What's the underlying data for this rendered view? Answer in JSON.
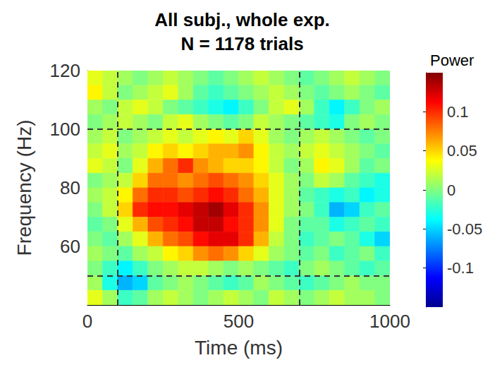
{
  "chart_data": {
    "type": "heatmap",
    "title": "All subj., whole exp.\nN = 1178 trials",
    "x_label": "Time (ms)",
    "y_label": "Frequency (Hz)",
    "xlim": [
      0,
      1000
    ],
    "xticks": [
      0,
      500,
      1000
    ],
    "ylim": [
      40,
      120
    ],
    "yticks": [
      60,
      80,
      100,
      120
    ],
    "grid": false,
    "reference_lines": {
      "x": [
        100,
        700
      ],
      "y": [
        50,
        100
      ],
      "line_style": "dashed",
      "color": "#333333"
    },
    "colorbar": {
      "label": "Power",
      "lim": [
        -0.15,
        0.15
      ],
      "ticks": [
        -0.1,
        -0.05,
        0,
        0.05,
        0.1
      ]
    },
    "cells": {
      "x": [
        25,
        75,
        125,
        175,
        225,
        275,
        325,
        375,
        425,
        475,
        525,
        575,
        625,
        675,
        725,
        775,
        825,
        875,
        925,
        975
      ],
      "y": [
        117.5,
        112.5,
        107.5,
        102.5,
        97.5,
        92.5,
        87.5,
        82.5,
        77.5,
        72.5,
        67.5,
        62.5,
        57.5,
        52.5,
        47.5,
        42.5
      ],
      "values": [
        [
          0.03,
          0.02,
          0.01,
          0.0,
          0.01,
          0.02,
          0.01,
          0.0,
          -0.01,
          0.0,
          0.01,
          0.02,
          0.01,
          0.0,
          -0.01,
          0.0,
          0.01,
          0.02,
          0.01,
          0.0
        ],
        [
          0.04,
          0.02,
          0.0,
          0.01,
          0.02,
          0.03,
          0.01,
          -0.01,
          -0.02,
          -0.01,
          0.0,
          0.01,
          0.02,
          0.01,
          0.0,
          -0.01,
          0.0,
          0.01,
          0.0,
          -0.01
        ],
        [
          0.01,
          0.0,
          0.02,
          0.03,
          0.02,
          0.0,
          -0.01,
          -0.02,
          -0.03,
          -0.04,
          -0.02,
          0.0,
          0.02,
          0.03,
          0.01,
          -0.02,
          -0.04,
          -0.02,
          0.0,
          0.01
        ],
        [
          0.0,
          0.01,
          0.02,
          0.01,
          0.0,
          0.02,
          0.03,
          0.01,
          0.0,
          -0.01,
          0.0,
          0.02,
          0.01,
          0.0,
          -0.01,
          -0.02,
          -0.03,
          0.0,
          0.01,
          0.0
        ],
        [
          0.01,
          0.02,
          0.0,
          0.01,
          0.02,
          0.03,
          0.02,
          0.03,
          0.04,
          0.03,
          0.05,
          0.03,
          0.01,
          0.0,
          0.01,
          0.02,
          0.01,
          0.0,
          -0.01,
          0.0
        ],
        [
          0.02,
          0.03,
          0.01,
          0.02,
          0.04,
          0.05,
          0.04,
          0.05,
          0.06,
          0.06,
          0.07,
          0.04,
          0.02,
          0.01,
          0.02,
          0.03,
          0.02,
          0.01,
          0.0,
          -0.01
        ],
        [
          0.03,
          0.02,
          0.0,
          0.03,
          0.06,
          0.08,
          0.1,
          0.07,
          0.06,
          0.05,
          0.05,
          0.04,
          0.02,
          0.0,
          0.01,
          0.04,
          0.03,
          0.01,
          -0.01,
          0.0
        ],
        [
          0.0,
          0.01,
          0.02,
          0.05,
          0.08,
          0.08,
          0.07,
          0.08,
          0.09,
          0.08,
          0.07,
          0.05,
          0.03,
          0.01,
          0.0,
          0.02,
          0.01,
          -0.01,
          -0.02,
          -0.03
        ],
        [
          0.01,
          0.02,
          0.04,
          0.08,
          0.1,
          0.1,
          0.09,
          0.1,
          0.11,
          0.1,
          0.08,
          0.06,
          0.03,
          0.01,
          -0.01,
          -0.02,
          -0.03,
          -0.02,
          -0.04,
          -0.03
        ],
        [
          0.0,
          0.02,
          0.05,
          0.1,
          0.11,
          0.11,
          0.12,
          0.13,
          0.14,
          0.12,
          0.1,
          0.07,
          0.03,
          0.01,
          0.0,
          -0.02,
          -0.06,
          -0.05,
          -0.02,
          -0.01
        ],
        [
          -0.01,
          0.0,
          0.03,
          0.06,
          0.09,
          0.1,
          0.11,
          0.13,
          0.13,
          0.11,
          0.1,
          0.07,
          0.03,
          0.0,
          -0.01,
          -0.01,
          -0.03,
          -0.02,
          -0.01,
          -0.02
        ],
        [
          0.0,
          -0.01,
          0.01,
          0.03,
          0.06,
          0.08,
          0.09,
          0.11,
          0.12,
          0.12,
          0.1,
          0.06,
          0.02,
          0.0,
          -0.02,
          -0.01,
          0.0,
          -0.01,
          -0.03,
          -0.05
        ],
        [
          0.01,
          0.0,
          -0.01,
          0.01,
          0.02,
          0.04,
          0.05,
          0.07,
          0.08,
          0.07,
          0.05,
          0.03,
          0.01,
          0.0,
          -0.01,
          0.0,
          -0.02,
          -0.01,
          0.0,
          -0.02
        ],
        [
          0.0,
          -0.02,
          -0.04,
          -0.02,
          0.0,
          0.01,
          0.02,
          0.02,
          0.01,
          0.0,
          0.01,
          0.0,
          -0.01,
          -0.02,
          0.0,
          0.01,
          0.0,
          -0.01,
          -0.02,
          -0.01
        ],
        [
          0.01,
          -0.03,
          -0.06,
          -0.05,
          -0.01,
          0.0,
          0.01,
          0.0,
          -0.01,
          -0.02,
          -0.01,
          0.01,
          0.0,
          -0.01,
          -0.02,
          -0.01,
          0.0,
          0.01,
          0.0,
          0.0
        ],
        [
          0.03,
          0.01,
          -0.02,
          -0.01,
          0.01,
          0.02,
          0.01,
          0.0,
          0.01,
          0.02,
          0.01,
          0.0,
          0.02,
          0.01,
          0.0,
          0.01,
          0.02,
          0.01,
          0.01,
          0.0
        ]
      ]
    }
  }
}
